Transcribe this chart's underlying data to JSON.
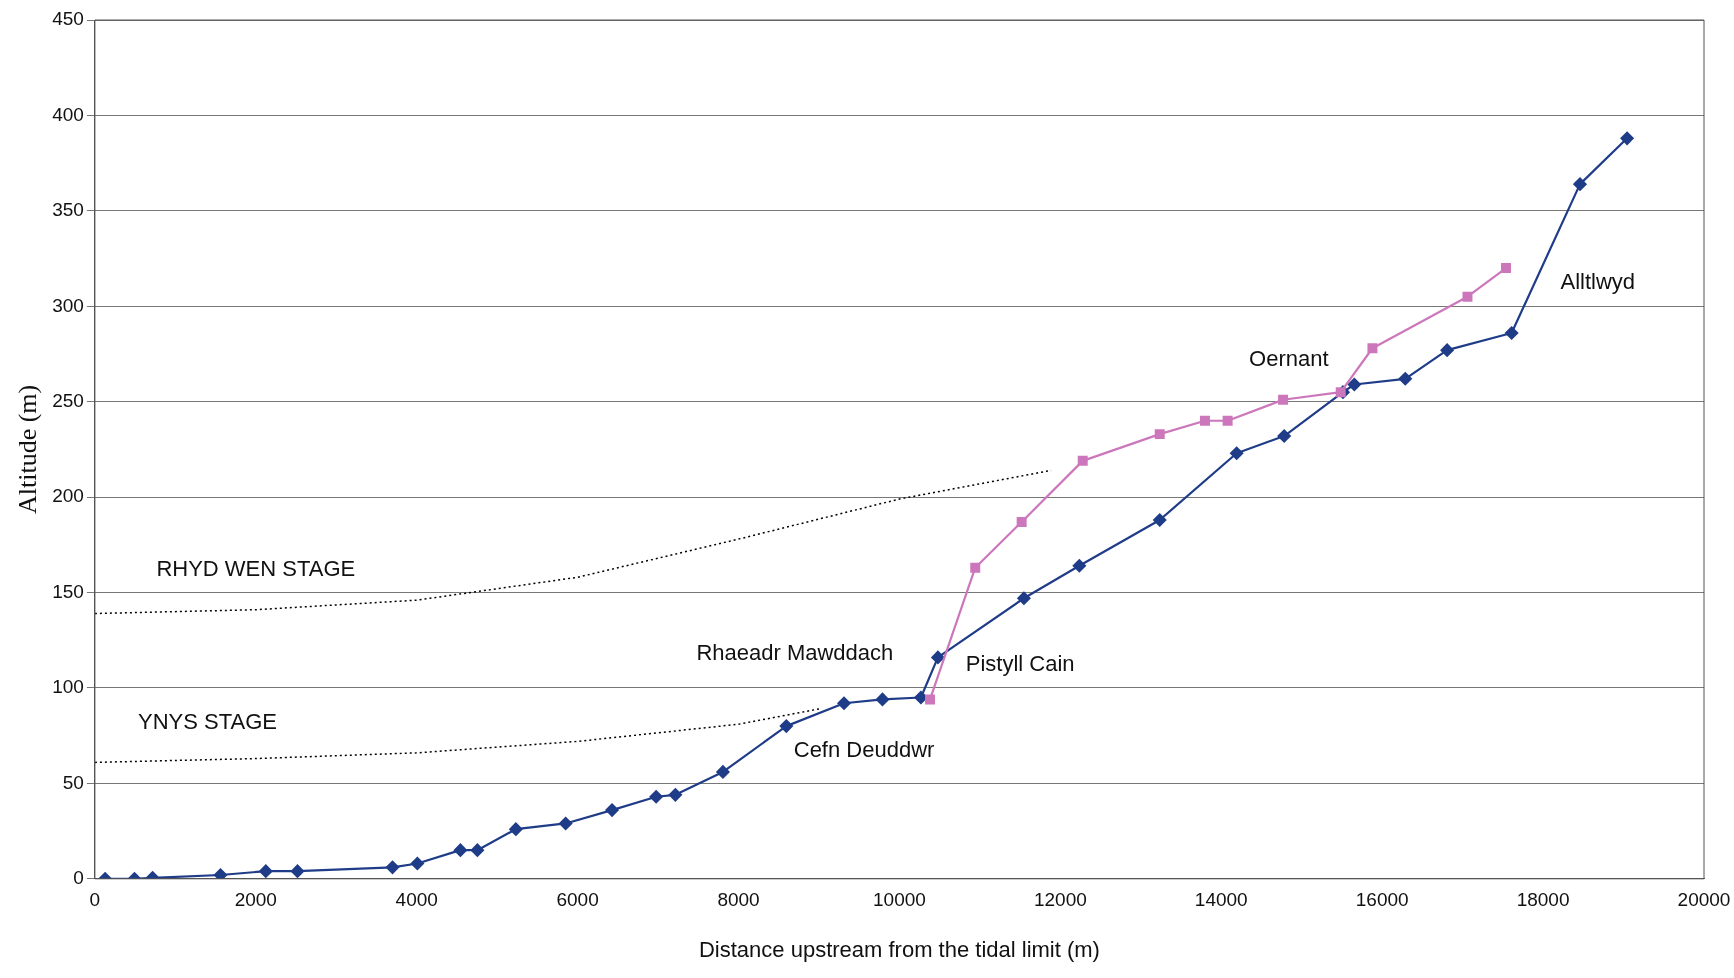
{
  "chart_data": {
    "type": "line",
    "xlabel": "Distance upstream from the tidal limit (m)",
    "ylabel": "Altitude (m)",
    "xlim": [
      0,
      20000
    ],
    "xticks": [
      0,
      2000,
      4000,
      6000,
      8000,
      10000,
      12000,
      14000,
      16000,
      18000,
      20000
    ],
    "ylim": [
      0,
      450
    ],
    "yticks": [
      0,
      50,
      100,
      150,
      200,
      250,
      300,
      350,
      400,
      450
    ],
    "grid": "y",
    "legend": false,
    "series": [
      {
        "color": "#1f3c88",
        "marker": "diamond",
        "line_style": "solid",
        "x": [
          127,
          492,
          717,
          1561,
          2124,
          2518,
          3699,
          4008,
          4543,
          4754,
          5232,
          5851,
          6428,
          6976,
          7215,
          7806,
          8594,
          9311,
          9789,
          10267,
          10478,
          11547,
          12236,
          13235,
          14191,
          14782,
          15513,
          15654,
          16287,
          16807,
          17609,
          18459,
          19044
        ],
        "values": [
          0,
          0,
          0.5,
          2,
          4,
          4,
          6,
          8,
          15,
          15,
          26,
          29,
          36,
          43,
          44,
          56,
          80,
          92,
          94,
          95,
          116,
          147,
          164,
          188,
          223,
          232,
          255,
          259,
          262,
          277,
          286,
          364,
          388
        ]
      },
      {
        "color": "#cc77bb",
        "marker": "square",
        "line_style": "solid",
        "x": [
          10380,
          10942,
          11519,
          12278,
          13235,
          13797,
          14079,
          14768,
          15485,
          15879,
          17060,
          17539
        ],
        "values": [
          94,
          163,
          187,
          219,
          233,
          240,
          240,
          251,
          255,
          278,
          305,
          320
        ]
      },
      {
        "color": "#000000",
        "marker": "none",
        "line_style": "dotted",
        "x": [
          0,
          2000,
          4000,
          6000,
          8000,
          10000,
          11885
        ],
        "values": [
          139,
          141,
          146,
          158,
          178,
          199,
          214
        ]
      },
      {
        "color": "#000000",
        "marker": "none",
        "line_style": "dotted",
        "x": [
          0,
          2000,
          4000,
          6000,
          8000,
          9000
        ],
        "values": [
          61,
          63,
          66,
          72,
          81,
          89
        ]
      }
    ],
    "annotations": [
      "RHYD WEN STAGE",
      "YNYS STAGE",
      "Rhaeadr Mawddach",
      "Pistyll Cain",
      "Cefn Deuddwr",
      "Oernant",
      "Alltlwyd"
    ]
  }
}
